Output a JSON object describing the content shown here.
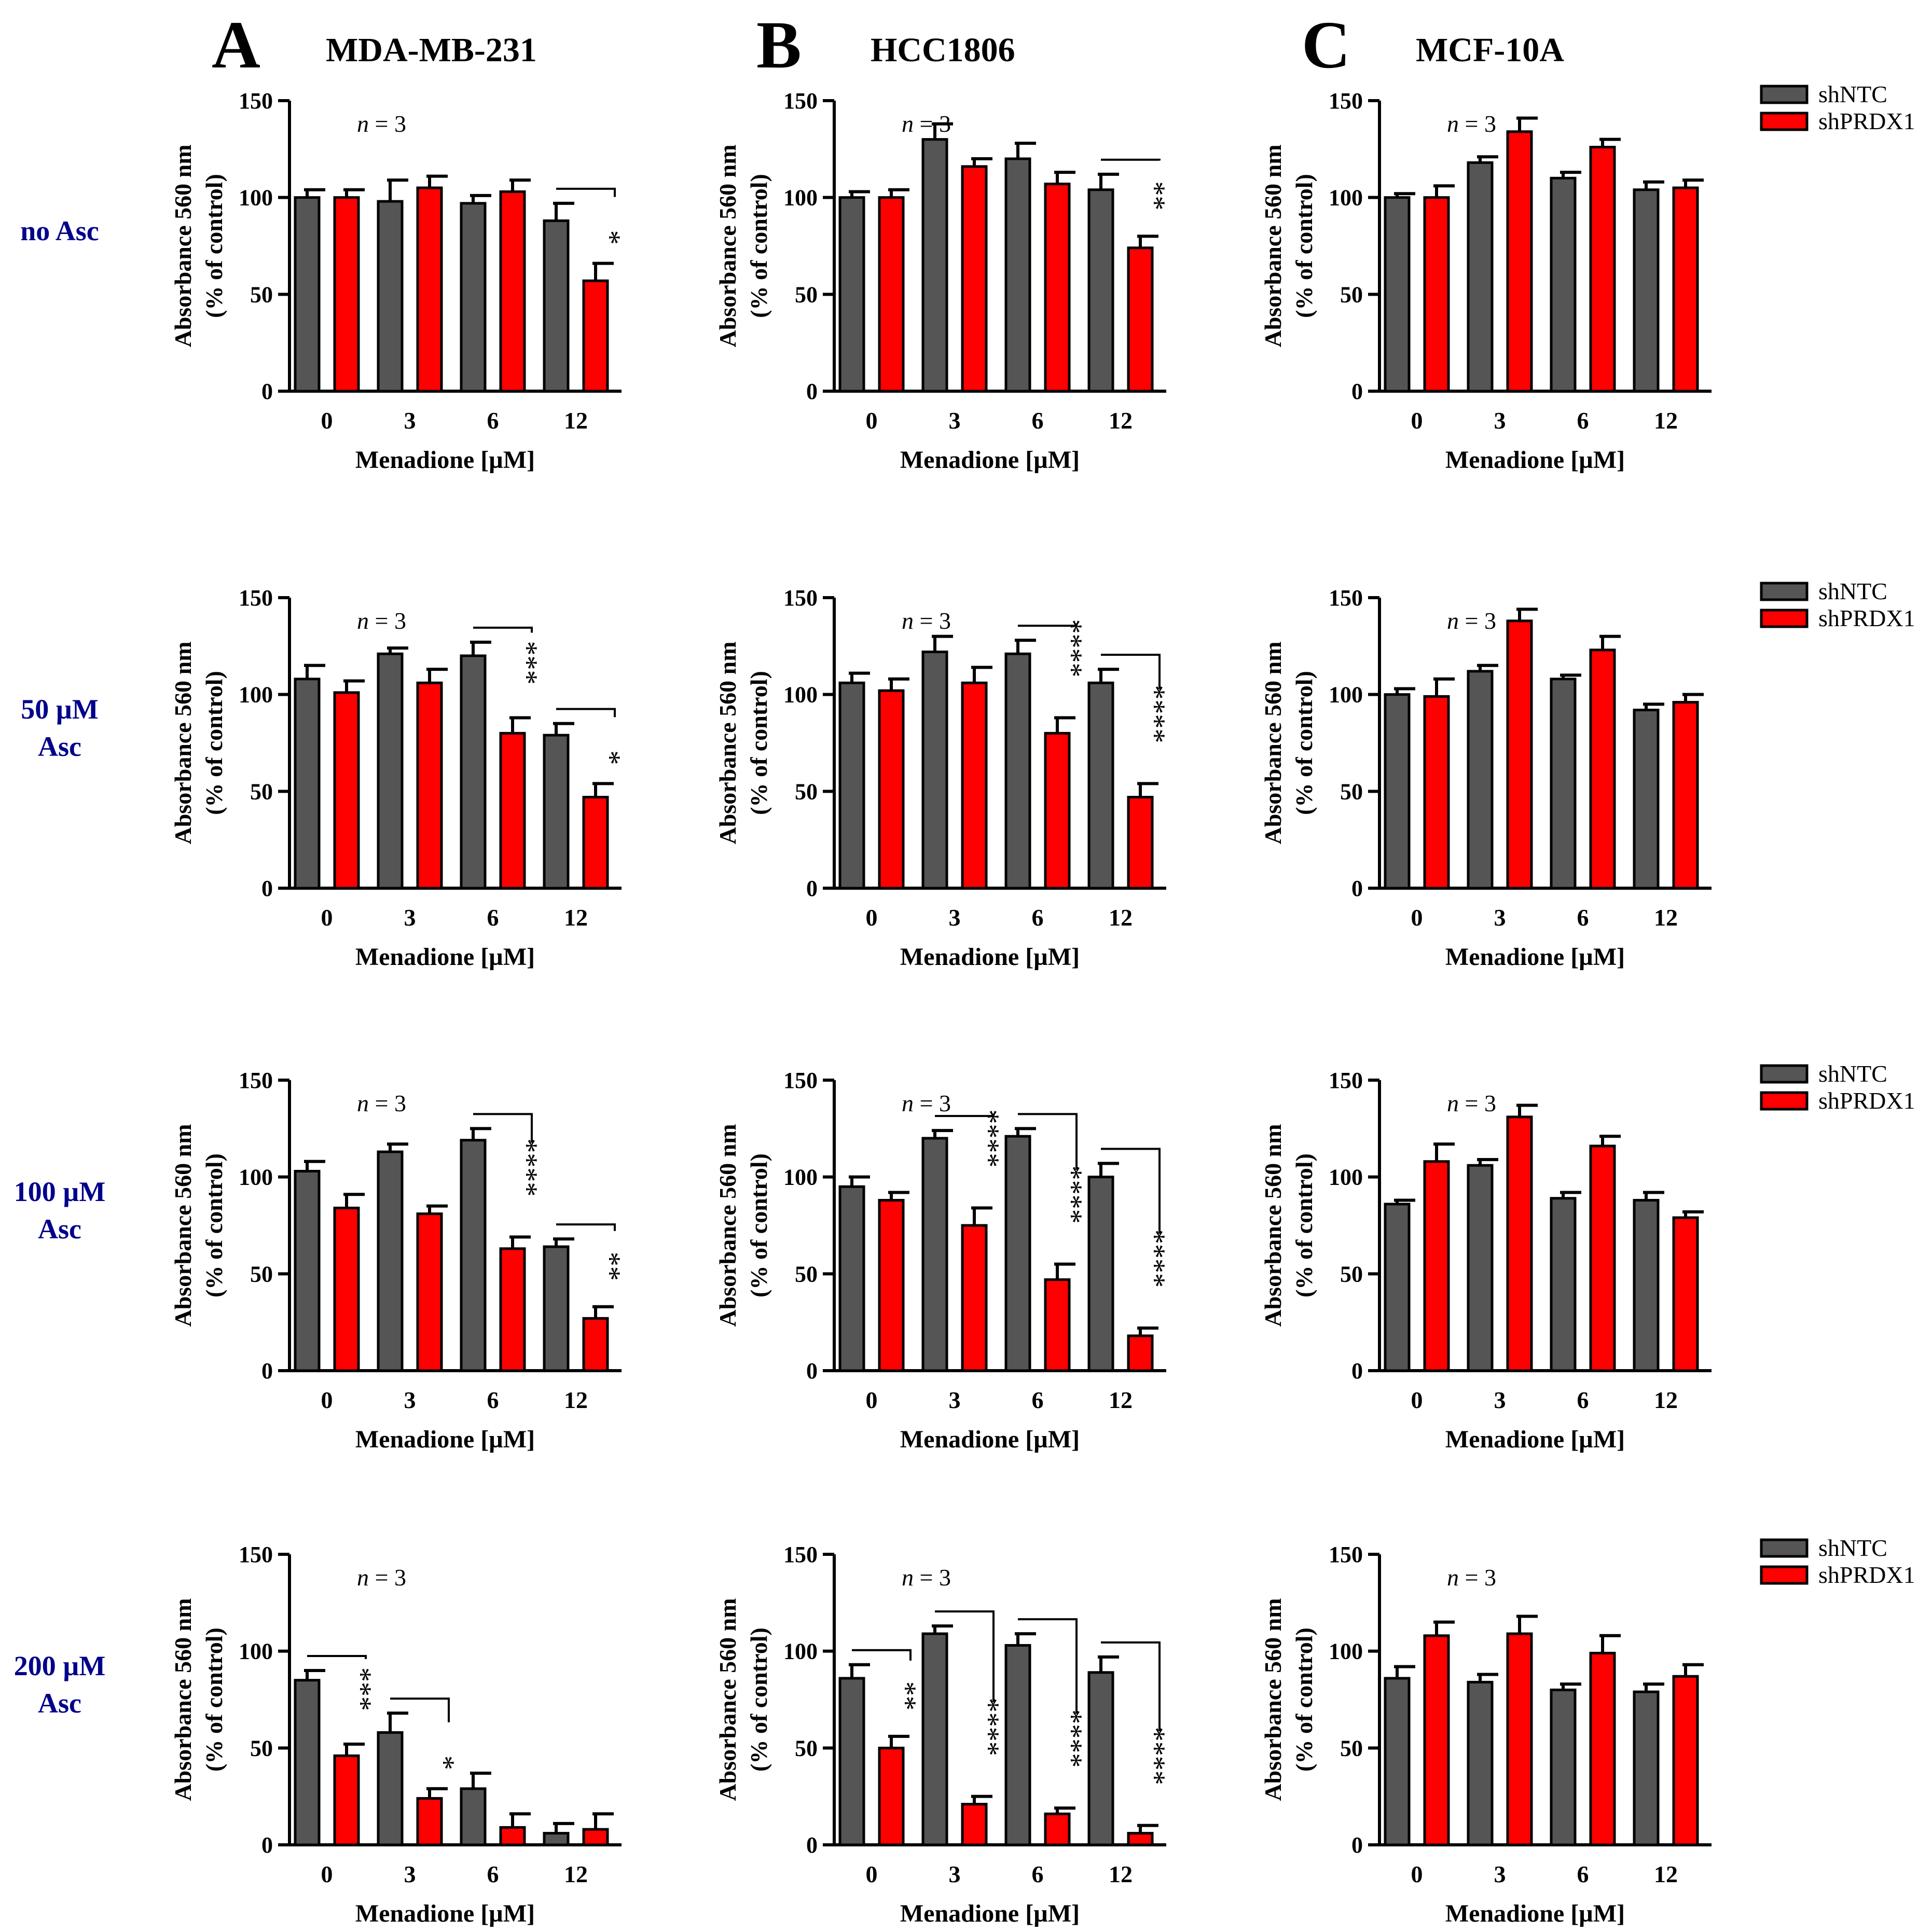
{
  "figure": {
    "columns": [
      {
        "letter": "A",
        "title": "MDA-MB-231"
      },
      {
        "letter": "B",
        "title": "HCC1806"
      },
      {
        "letter": "C",
        "title": "MCF-10A"
      }
    ],
    "rows": [
      {
        "label_lines": [
          "no Asc"
        ]
      },
      {
        "label_lines": [
          "50 µM",
          "Asc"
        ]
      },
      {
        "label_lines": [
          "100 µM",
          "Asc"
        ]
      },
      {
        "label_lines": [
          "200 µM",
          "Asc"
        ]
      }
    ],
    "legend": [
      {
        "name": "shNTC",
        "color": "#555555"
      },
      {
        "name": "shPRDX1",
        "color": "#ff0000"
      }
    ],
    "colors": {
      "title": "#000000",
      "row_label": "#00008b",
      "axis": "#000000"
    }
  },
  "chart_data": [
    {
      "type": "bar",
      "panel": "A-no Asc",
      "n_label": "n = 3",
      "categories": [
        "0",
        "3",
        "6",
        "12"
      ],
      "xlabel": "Menadione [µM]",
      "ylabel": [
        "Absorbance 560 nm",
        "(% of control)"
      ],
      "ylim": [
        0,
        150
      ],
      "yticks": [
        0,
        50,
        100,
        150
      ],
      "series": [
        {
          "name": "shNTC",
          "values": [
            100,
            98,
            97,
            88
          ],
          "errors": [
            4,
            11,
            4,
            9
          ]
        },
        {
          "name": "shPRDX1",
          "values": [
            100,
            105,
            103,
            57
          ],
          "errors": [
            4,
            6,
            6,
            9
          ]
        }
      ],
      "significance": [
        {
          "category": "12",
          "label": "*"
        }
      ]
    },
    {
      "type": "bar",
      "panel": "B-no Asc",
      "n_label": "n = 3",
      "categories": [
        "0",
        "3",
        "6",
        "12"
      ],
      "xlabel": "Menadione [µM]",
      "ylabel": [
        "Absorbance 560 nm",
        "(% of control)"
      ],
      "ylim": [
        0,
        150
      ],
      "yticks": [
        0,
        50,
        100,
        150
      ],
      "series": [
        {
          "name": "shNTC",
          "values": [
            100,
            130,
            120,
            104
          ],
          "errors": [
            3,
            8,
            8,
            8
          ]
        },
        {
          "name": "shPRDX1",
          "values": [
            100,
            116,
            107,
            74
          ],
          "errors": [
            4,
            4,
            6,
            6
          ]
        }
      ],
      "significance": [
        {
          "category": "12",
          "label": "**"
        }
      ]
    },
    {
      "type": "bar",
      "panel": "C-no Asc",
      "n_label": "n = 3",
      "categories": [
        "0",
        "3",
        "6",
        "12"
      ],
      "xlabel": "Menadione [µM]",
      "ylabel": [
        "Absorbance 560 nm",
        "(% of control)"
      ],
      "ylim": [
        0,
        150
      ],
      "yticks": [
        0,
        50,
        100,
        150
      ],
      "series": [
        {
          "name": "shNTC",
          "values": [
            100,
            118,
            110,
            104
          ],
          "errors": [
            2,
            3,
            3,
            4
          ]
        },
        {
          "name": "shPRDX1",
          "values": [
            100,
            134,
            126,
            105
          ],
          "errors": [
            6,
            7,
            4,
            4
          ]
        }
      ],
      "significance": []
    },
    {
      "type": "bar",
      "panel": "A-50 µM Asc",
      "n_label": "n = 3",
      "categories": [
        "0",
        "3",
        "6",
        "12"
      ],
      "xlabel": "Menadione [µM]",
      "ylabel": [
        "Absorbance 560 nm",
        "(% of control)"
      ],
      "ylim": [
        0,
        150
      ],
      "yticks": [
        0,
        50,
        100,
        150
      ],
      "series": [
        {
          "name": "shNTC",
          "values": [
            108,
            121,
            120,
            79
          ],
          "errors": [
            7,
            3,
            7,
            6
          ]
        },
        {
          "name": "shPRDX1",
          "values": [
            101,
            106,
            80,
            47
          ],
          "errors": [
            6,
            7,
            8,
            7
          ]
        }
      ],
      "significance": [
        {
          "category": "6",
          "label": "***"
        },
        {
          "category": "12",
          "label": "*"
        }
      ]
    },
    {
      "type": "bar",
      "panel": "B-50 µM Asc",
      "n_label": "n = 3",
      "categories": [
        "0",
        "3",
        "6",
        "12"
      ],
      "xlabel": "Menadione [µM]",
      "ylabel": [
        "Absorbance 560 nm",
        "(% of control)"
      ],
      "ylim": [
        0,
        150
      ],
      "yticks": [
        0,
        50,
        100,
        150
      ],
      "series": [
        {
          "name": "shNTC",
          "values": [
            106,
            122,
            121,
            106
          ],
          "errors": [
            5,
            8,
            7,
            7
          ]
        },
        {
          "name": "shPRDX1",
          "values": [
            102,
            106,
            80,
            47
          ],
          "errors": [
            6,
            8,
            8,
            7
          ]
        }
      ],
      "significance": [
        {
          "category": "6",
          "label": "****"
        },
        {
          "category": "12",
          "label": "****"
        }
      ]
    },
    {
      "type": "bar",
      "panel": "C-50 µM Asc",
      "n_label": "n = 3",
      "categories": [
        "0",
        "3",
        "6",
        "12"
      ],
      "xlabel": "Menadione [µM]",
      "ylabel": [
        "Absorbance 560 nm",
        "(% of control)"
      ],
      "ylim": [
        0,
        150
      ],
      "yticks": [
        0,
        50,
        100,
        150
      ],
      "series": [
        {
          "name": "shNTC",
          "values": [
            100,
            112,
            108,
            92
          ],
          "errors": [
            3,
            3,
            2,
            3
          ]
        },
        {
          "name": "shPRDX1",
          "values": [
            99,
            138,
            123,
            96
          ],
          "errors": [
            9,
            6,
            7,
            4
          ]
        }
      ],
      "significance": []
    },
    {
      "type": "bar",
      "panel": "A-100 µM Asc",
      "n_label": "n = 3",
      "categories": [
        "0",
        "3",
        "6",
        "12"
      ],
      "xlabel": "Menadione [µM]",
      "ylabel": [
        "Absorbance 560 nm",
        "(% of control)"
      ],
      "ylim": [
        0,
        150
      ],
      "yticks": [
        0,
        50,
        100,
        150
      ],
      "series": [
        {
          "name": "shNTC",
          "values": [
            103,
            113,
            119,
            64
          ],
          "errors": [
            5,
            4,
            6,
            4
          ]
        },
        {
          "name": "shPRDX1",
          "values": [
            84,
            81,
            63,
            27
          ],
          "errors": [
            7,
            4,
            6,
            6
          ]
        }
      ],
      "significance": [
        {
          "category": "6",
          "label": "****"
        },
        {
          "category": "12",
          "label": "**"
        }
      ]
    },
    {
      "type": "bar",
      "panel": "B-100 µM Asc",
      "n_label": "n = 3",
      "categories": [
        "0",
        "3",
        "6",
        "12"
      ],
      "xlabel": "Menadione [µM]",
      "ylabel": [
        "Absorbance 560 nm",
        "(% of control)"
      ],
      "ylim": [
        0,
        150
      ],
      "yticks": [
        0,
        50,
        100,
        150
      ],
      "series": [
        {
          "name": "shNTC",
          "values": [
            95,
            120,
            121,
            100
          ],
          "errors": [
            5,
            4,
            4,
            7
          ]
        },
        {
          "name": "shPRDX1",
          "values": [
            88,
            75,
            47,
            18
          ],
          "errors": [
            4,
            9,
            8,
            4
          ]
        }
      ],
      "significance": [
        {
          "category": "3",
          "label": "****"
        },
        {
          "category": "6",
          "label": "****"
        },
        {
          "category": "12",
          "label": "****"
        }
      ]
    },
    {
      "type": "bar",
      "panel": "C-100 µM Asc",
      "n_label": "n = 3",
      "categories": [
        "0",
        "3",
        "6",
        "12"
      ],
      "xlabel": "Menadione [µM]",
      "ylabel": [
        "Absorbance 560 nm",
        "(% of control)"
      ],
      "ylim": [
        0,
        150
      ],
      "yticks": [
        0,
        50,
        100,
        150
      ],
      "series": [
        {
          "name": "shNTC",
          "values": [
            86,
            106,
            89,
            88
          ],
          "errors": [
            2,
            3,
            3,
            4
          ]
        },
        {
          "name": "shPRDX1",
          "values": [
            108,
            131,
            116,
            79
          ],
          "errors": [
            9,
            6,
            5,
            3
          ]
        }
      ],
      "significance": []
    },
    {
      "type": "bar",
      "panel": "A-200 µM Asc",
      "n_label": "n = 3",
      "categories": [
        "0",
        "3",
        "6",
        "12"
      ],
      "xlabel": "Menadione [µM]",
      "ylabel": [
        "Absorbance 560 nm",
        "(% of control)"
      ],
      "ylim": [
        0,
        150
      ],
      "yticks": [
        0,
        50,
        100,
        150
      ],
      "series": [
        {
          "name": "shNTC",
          "values": [
            85,
            58,
            29,
            6
          ],
          "errors": [
            5,
            10,
            8,
            5
          ]
        },
        {
          "name": "shPRDX1",
          "values": [
            46,
            24,
            9,
            8
          ],
          "errors": [
            6,
            5,
            7,
            8
          ]
        }
      ],
      "significance": [
        {
          "category": "0",
          "label": "***"
        },
        {
          "category": "3",
          "label": "*"
        }
      ]
    },
    {
      "type": "bar",
      "panel": "B-200 µM Asc",
      "n_label": "n = 3",
      "categories": [
        "0",
        "3",
        "6",
        "12"
      ],
      "xlabel": "Menadione [µM]",
      "ylabel": [
        "Absorbance 560 nm",
        "(% of control)"
      ],
      "ylim": [
        0,
        150
      ],
      "yticks": [
        0,
        50,
        100,
        150
      ],
      "series": [
        {
          "name": "shNTC",
          "values": [
            86,
            109,
            103,
            89
          ],
          "errors": [
            7,
            4,
            6,
            8
          ]
        },
        {
          "name": "shPRDX1",
          "values": [
            50,
            21,
            16,
            6
          ],
          "errors": [
            6,
            4,
            3,
            4
          ]
        }
      ],
      "significance": [
        {
          "category": "0",
          "label": "**"
        },
        {
          "category": "3",
          "label": "****"
        },
        {
          "category": "6",
          "label": "****"
        },
        {
          "category": "12",
          "label": "****"
        }
      ]
    },
    {
      "type": "bar",
      "panel": "C-200 µM Asc",
      "n_label": "n = 3",
      "categories": [
        "0",
        "3",
        "6",
        "12"
      ],
      "xlabel": "Menadione [µM]",
      "ylabel": [
        "Absorbance 560 nm",
        "(% of control)"
      ],
      "ylim": [
        0,
        150
      ],
      "yticks": [
        0,
        50,
        100,
        150
      ],
      "series": [
        {
          "name": "shNTC",
          "values": [
            86,
            84,
            80,
            79
          ],
          "errors": [
            6,
            4,
            3,
            4
          ]
        },
        {
          "name": "shPRDX1",
          "values": [
            108,
            109,
            99,
            87
          ],
          "errors": [
            7,
            9,
            9,
            6
          ]
        }
      ],
      "significance": []
    }
  ]
}
